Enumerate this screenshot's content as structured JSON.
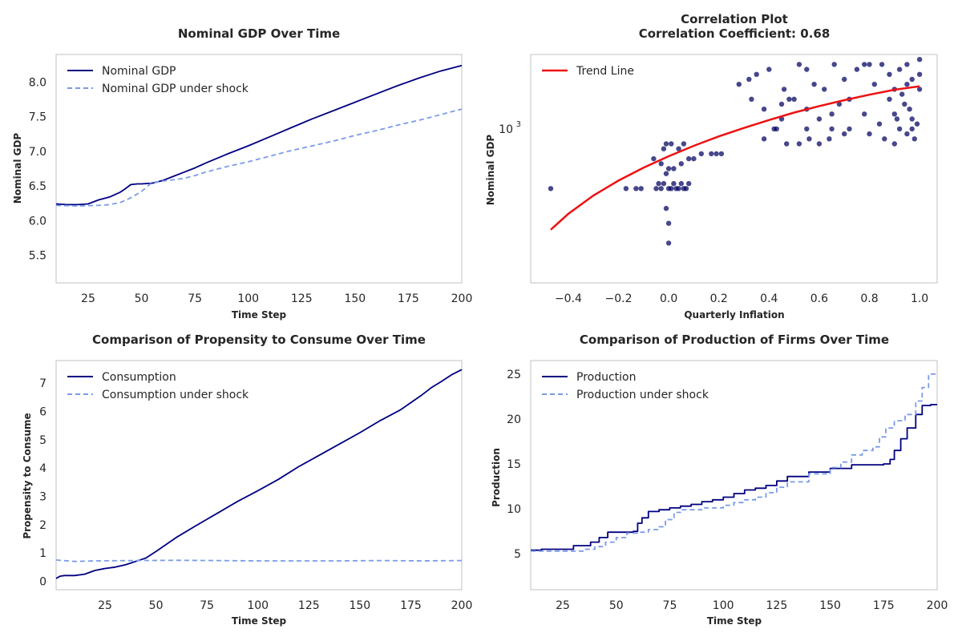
{
  "chart_data": [
    {
      "type": "line",
      "title": "Nominal GDP Over Time",
      "xlabel": "Time Step",
      "ylabel": "Nominal GDP",
      "xlim": [
        10,
        200
      ],
      "ylim": [
        5.1,
        8.4
      ],
      "xticks": [
        25,
        50,
        75,
        100,
        125,
        150,
        175,
        200
      ],
      "yticks": [
        5.5,
        6.0,
        6.5,
        7.0,
        7.5,
        8.0
      ],
      "ytick_labels": [
        "5.5",
        "6.0",
        "6.5",
        "7.0",
        "7.5",
        "8.0"
      ],
      "grid": false,
      "legend_position": "top-left",
      "series": [
        {
          "name": "Nominal GDP",
          "color": "#000080",
          "dash": "solid",
          "x": [
            10,
            15,
            20,
            25,
            30,
            35,
            40,
            42,
            45,
            48,
            50,
            55,
            60,
            65,
            70,
            75,
            80,
            90,
            100,
            110,
            120,
            130,
            140,
            150,
            160,
            170,
            180,
            190,
            200
          ],
          "y": [
            6.24,
            6.23,
            6.23,
            6.24,
            6.3,
            6.34,
            6.41,
            6.45,
            6.52,
            6.53,
            6.53,
            6.54,
            6.58,
            6.64,
            6.7,
            6.76,
            6.83,
            6.96,
            7.08,
            7.21,
            7.34,
            7.47,
            7.59,
            7.71,
            7.83,
            7.95,
            8.06,
            8.16,
            8.24
          ]
        },
        {
          "name": "Nominal GDP under shock",
          "color": "#7b9be8",
          "dash": "dashed",
          "x": [
            10,
            20,
            30,
            35,
            40,
            45,
            50,
            53,
            55,
            60,
            65,
            70,
            75,
            80,
            90,
            100,
            110,
            120,
            130,
            140,
            150,
            160,
            170,
            180,
            190,
            200
          ],
          "y": [
            6.22,
            6.21,
            6.22,
            6.23,
            6.26,
            6.33,
            6.42,
            6.5,
            6.55,
            6.57,
            6.59,
            6.61,
            6.65,
            6.7,
            6.78,
            6.85,
            6.93,
            7.01,
            7.08,
            7.15,
            7.23,
            7.3,
            7.38,
            7.45,
            7.53,
            7.61
          ]
        }
      ]
    },
    {
      "type": "scatter",
      "title": "Correlation Plot",
      "subtitle": "Correlation Coefficient: 0.68",
      "xlabel": "Quarterly Inflation",
      "ylabel": "Nominal GDP",
      "xlim": [
        -0.55,
        1.07
      ],
      "ylim_log10": [
        2.69,
        3.15
      ],
      "yscale": "log",
      "xticks": [
        -0.4,
        -0.2,
        0.0,
        0.2,
        0.4,
        0.6,
        0.8,
        1.0
      ],
      "xtick_labels": [
        "−0.4",
        "−0.2",
        "0.0",
        "0.2",
        "0.4",
        "0.6",
        "0.8",
        "1.0"
      ],
      "ytick_labels": [
        {
          "base": "10",
          "exp": "3",
          "log10": 3.0
        }
      ],
      "grid": false,
      "legend_position": "top-left",
      "points_color": "#000060",
      "points": [
        [
          -0.47,
          2.88
        ],
        [
          -0.17,
          2.88
        ],
        [
          -0.13,
          2.88
        ],
        [
          -0.11,
          2.88
        ],
        [
          -0.05,
          2.88
        ],
        [
          -0.04,
          2.89
        ],
        [
          -0.03,
          2.88
        ],
        [
          -0.02,
          2.89
        ],
        [
          0.0,
          2.88
        ],
        [
          0.01,
          2.88
        ],
        [
          0.02,
          2.89
        ],
        [
          0.03,
          2.88
        ],
        [
          0.04,
          2.88
        ],
        [
          0.05,
          2.89
        ],
        [
          0.06,
          2.88
        ],
        [
          0.07,
          2.88
        ],
        [
          0.08,
          2.89
        ],
        [
          -0.01,
          2.91
        ],
        [
          0.02,
          2.92
        ],
        [
          0.05,
          2.93
        ],
        [
          0.08,
          2.94
        ],
        [
          -0.06,
          2.94
        ],
        [
          -0.03,
          2.93
        ],
        [
          0.0,
          2.92
        ],
        [
          0.04,
          2.96
        ],
        [
          -0.02,
          2.96
        ],
        [
          0.1,
          2.94
        ],
        [
          0.13,
          2.95
        ],
        [
          0.17,
          2.95
        ],
        [
          0.19,
          2.95
        ],
        [
          0.21,
          2.95
        ],
        [
          0.01,
          2.97
        ],
        [
          0.06,
          2.97
        ],
        [
          -0.01,
          2.97
        ],
        [
          -0.01,
          2.84
        ],
        [
          0.0,
          2.81
        ],
        [
          0.0,
          2.77
        ],
        [
          0.28,
          3.09
        ],
        [
          0.32,
          3.1
        ],
        [
          0.35,
          3.11
        ],
        [
          0.4,
          3.12
        ],
        [
          0.46,
          3.08
        ],
        [
          0.48,
          3.06
        ],
        [
          0.52,
          3.13
        ],
        [
          0.55,
          3.12
        ],
        [
          0.58,
          3.09
        ],
        [
          0.62,
          3.08
        ],
        [
          0.66,
          3.13
        ],
        [
          0.7,
          3.1
        ],
        [
          0.72,
          3.06
        ],
        [
          0.75,
          3.12
        ],
        [
          0.78,
          3.13
        ],
        [
          0.8,
          3.13
        ],
        [
          0.82,
          3.09
        ],
        [
          0.85,
          3.13
        ],
        [
          0.88,
          3.11
        ],
        [
          0.9,
          3.08
        ],
        [
          0.92,
          3.12
        ],
        [
          0.95,
          3.13
        ],
        [
          0.97,
          3.1
        ],
        [
          1.0,
          3.11
        ],
        [
          1.0,
          3.14
        ],
        [
          0.33,
          3.06
        ],
        [
          0.38,
          3.04
        ],
        [
          0.42,
          3.0
        ],
        [
          0.45,
          3.02
        ],
        [
          0.5,
          3.06
        ],
        [
          0.55,
          3.04
        ],
        [
          0.6,
          3.02
        ],
        [
          0.65,
          3.0
        ],
        [
          0.68,
          3.05
        ],
        [
          0.72,
          3.0
        ],
        [
          0.78,
          3.03
        ],
        [
          0.84,
          3.01
        ],
        [
          0.88,
          3.06
        ],
        [
          0.91,
          3.02
        ],
        [
          0.94,
          3.05
        ],
        [
          0.97,
          3.0
        ],
        [
          0.38,
          2.98
        ],
        [
          0.43,
          3.0
        ],
        [
          0.47,
          2.97
        ],
        [
          0.52,
          2.97
        ],
        [
          0.56,
          2.98
        ],
        [
          0.6,
          2.97
        ],
        [
          0.64,
          2.98
        ],
        [
          0.7,
          2.99
        ],
        [
          0.8,
          2.99
        ],
        [
          0.86,
          2.98
        ],
        [
          0.9,
          2.97
        ],
        [
          0.95,
          2.99
        ],
        [
          0.98,
          2.98
        ],
        [
          0.65,
          3.03
        ],
        [
          0.55,
          3.0
        ],
        [
          0.45,
          3.05
        ],
        [
          0.9,
          3.03
        ],
        [
          0.92,
          3.0
        ],
        [
          0.93,
          3.07
        ],
        [
          0.95,
          3.09
        ],
        [
          0.96,
          3.04
        ],
        [
          0.97,
          3.02
        ],
        [
          0.99,
          3.01
        ],
        [
          1.0,
          3.08
        ]
      ],
      "trend": {
        "name": "Trend Line",
        "color": "#ee1111",
        "x": [
          -0.47,
          -0.4,
          -0.3,
          -0.2,
          -0.1,
          0.0,
          0.1,
          0.2,
          0.3,
          0.4,
          0.5,
          0.6,
          0.7,
          0.8,
          0.9,
          1.0
        ],
        "y_log10": [
          2.797,
          2.829,
          2.866,
          2.896,
          2.922,
          2.945,
          2.966,
          2.985,
          3.002,
          3.018,
          3.033,
          3.046,
          3.058,
          3.069,
          3.079,
          3.086
        ]
      }
    },
    {
      "type": "line",
      "title": "Comparison of Propensity to Consume Over Time",
      "xlabel": "Time Step",
      "ylabel": "Propensity to Consume",
      "xlim": [
        1,
        200
      ],
      "ylim": [
        -0.3,
        7.8
      ],
      "xticks": [
        25,
        50,
        75,
        100,
        125,
        150,
        175,
        200
      ],
      "yticks": [
        0,
        1,
        2,
        3,
        4,
        5,
        6,
        7
      ],
      "ytick_labels": [
        "0",
        "1",
        "2",
        "3",
        "4",
        "5",
        "6",
        "7"
      ],
      "grid": false,
      "legend_position": "top-left",
      "series": [
        {
          "name": "Consumption",
          "color": "#000080",
          "dash": "solid",
          "x": [
            1,
            3,
            5,
            10,
            15,
            20,
            25,
            30,
            35,
            40,
            45,
            50,
            60,
            70,
            80,
            90,
            100,
            110,
            120,
            130,
            140,
            150,
            160,
            170,
            180,
            185,
            190,
            195,
            200
          ],
          "y": [
            0.1,
            0.18,
            0.2,
            0.2,
            0.25,
            0.38,
            0.45,
            0.5,
            0.58,
            0.7,
            0.82,
            1.05,
            1.55,
            1.98,
            2.4,
            2.82,
            3.2,
            3.6,
            4.05,
            4.45,
            4.85,
            5.25,
            5.68,
            6.06,
            6.56,
            6.84,
            7.06,
            7.3,
            7.48
          ]
        },
        {
          "name": "Consumption under shock",
          "color": "#7b9be8",
          "dash": "dashed",
          "x": [
            1,
            10,
            20,
            40,
            60,
            80,
            100,
            120,
            140,
            160,
            180,
            200
          ],
          "y": [
            0.75,
            0.7,
            0.72,
            0.73,
            0.74,
            0.73,
            0.72,
            0.72,
            0.72,
            0.73,
            0.72,
            0.73
          ]
        }
      ]
    },
    {
      "type": "line",
      "title": "Comparison of Production of Firms Over Time",
      "xlabel": "Time Step",
      "ylabel": "Production",
      "xlim": [
        10,
        200
      ],
      "ylim": [
        1,
        26.5
      ],
      "xticks": [
        25,
        50,
        75,
        100,
        125,
        150,
        175,
        200
      ],
      "yticks": [
        5,
        10,
        15,
        20,
        25
      ],
      "ytick_labels": [
        "5",
        "10",
        "15",
        "20",
        "25"
      ],
      "grid": false,
      "legend_position": "top-left",
      "series": [
        {
          "name": "Production",
          "color": "#000080",
          "dash": "solid",
          "x": [
            10,
            15,
            25,
            30,
            38,
            42,
            46,
            50,
            55,
            58,
            60,
            62,
            65,
            70,
            75,
            80,
            85,
            90,
            95,
            100,
            105,
            110,
            115,
            120,
            125,
            130,
            140,
            150,
            160,
            170,
            175,
            178,
            180,
            183,
            186,
            190,
            193,
            197,
            200
          ],
          "y": [
            5.4,
            5.5,
            5.5,
            5.9,
            6.3,
            6.8,
            7.4,
            7.4,
            7.4,
            7.5,
            8.4,
            9.0,
            9.7,
            9.9,
            10.1,
            10.3,
            10.5,
            10.8,
            11.0,
            11.3,
            11.7,
            12.1,
            12.3,
            12.6,
            13.1,
            13.6,
            14.1,
            14.5,
            14.9,
            14.9,
            15.0,
            15.5,
            16.5,
            17.8,
            19.0,
            20.5,
            21.5,
            21.6,
            21.6
          ],
          "step": true
        },
        {
          "name": "Production under shock",
          "color": "#7b9be8",
          "dash": "dashed",
          "x": [
            10,
            25,
            35,
            40,
            45,
            50,
            55,
            60,
            65,
            70,
            73,
            77,
            80,
            90,
            100,
            105,
            110,
            115,
            120,
            125,
            130,
            140,
            150,
            155,
            160,
            165,
            170,
            173,
            176,
            180,
            185,
            190,
            193,
            196,
            200
          ],
          "y": [
            5.3,
            5.3,
            5.5,
            5.8,
            6.3,
            6.8,
            7.3,
            7.4,
            7.7,
            8.0,
            8.8,
            9.6,
            9.9,
            10.1,
            10.4,
            10.7,
            11.0,
            11.3,
            11.8,
            12.4,
            13.0,
            13.9,
            14.6,
            15.2,
            16.0,
            16.5,
            16.9,
            18.0,
            19.0,
            19.8,
            20.5,
            22.0,
            23.5,
            25.0,
            25.0
          ],
          "step": true
        }
      ]
    }
  ]
}
